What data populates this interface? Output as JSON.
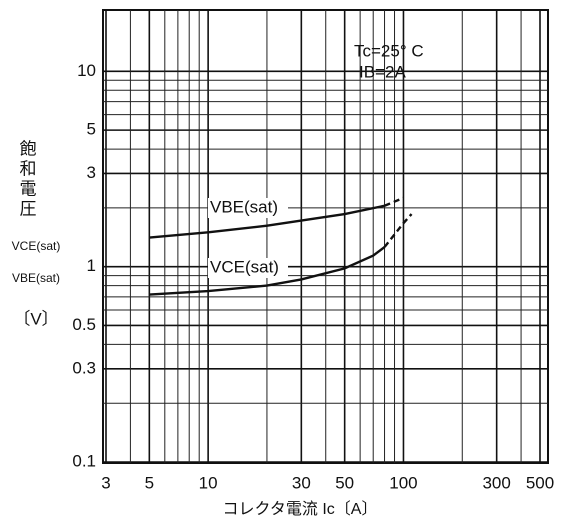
{
  "chart_data": {
    "type": "line",
    "annotations": [
      "Tc=25° C",
      "IB=2A"
    ],
    "y_label": [
      "飽",
      "和",
      "電",
      "圧",
      "VCE(sat)",
      "VBE(sat)",
      "〔V〕"
    ],
    "x_label": "コレクタ電流  Ic〔A〕",
    "log_x": true,
    "log_y": true,
    "grid": true,
    "xlim": [
      3,
      500
    ],
    "ylim": [
      0.1,
      20
    ],
    "xticks": [
      3,
      5,
      10,
      30,
      50,
      100,
      300,
      500
    ],
    "yticks": [
      0.1,
      0.3,
      0.5,
      1,
      3,
      5,
      10
    ],
    "x_minor_grid": [
      4,
      6,
      7,
      8,
      9,
      20,
      40,
      60,
      70,
      80,
      90,
      200,
      400
    ],
    "y_minor_grid": [
      0.2,
      0.4,
      0.6,
      0.7,
      0.8,
      0.9,
      2,
      4,
      6,
      7,
      8,
      9
    ],
    "series": [
      {
        "name": "VBE(sat)",
        "color": "#111111",
        "line_style": "solid",
        "x": [
          5,
          10,
          20,
          50,
          80
        ],
        "values": [
          1.41,
          1.5,
          1.62,
          1.86,
          2.05
        ]
      },
      {
        "color": "#111111",
        "line_style": "dashed",
        "x": [
          80,
          100
        ],
        "values": [
          2.05,
          2.25
        ]
      },
      {
        "name": "VCE(sat)",
        "color": "#111111",
        "line_style": "solid",
        "x": [
          5,
          10,
          20,
          30,
          50,
          70,
          80
        ],
        "values": [
          0.72,
          0.75,
          0.8,
          0.86,
          0.98,
          1.14,
          1.26
        ]
      },
      {
        "color": "#111111",
        "line_style": "dashed",
        "x": [
          80,
          100,
          110
        ],
        "values": [
          1.26,
          1.67,
          1.86
        ]
      }
    ]
  }
}
